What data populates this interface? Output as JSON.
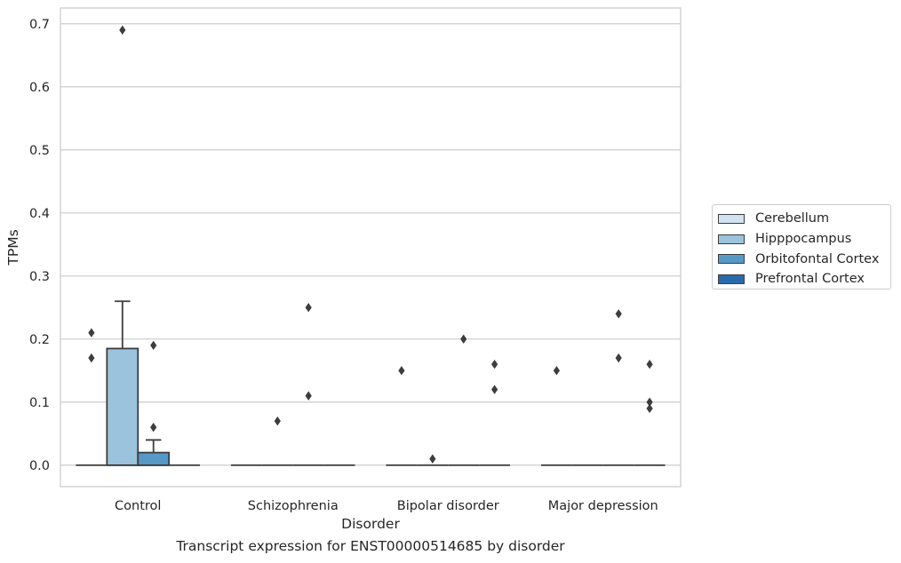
{
  "chart_data": {
    "type": "box",
    "title": "",
    "xlabel": "Disorder",
    "ylabel": "TPMs",
    "caption": "Transcript expression for ENST00000514685 by disorder",
    "ylim": [
      -0.034,
      0.725
    ],
    "yticks": [
      "0.0",
      "0.1",
      "0.2",
      "0.3",
      "0.4",
      "0.5",
      "0.6",
      "0.7"
    ],
    "categories": [
      "Control",
      "Schizophrenia",
      "Bipolar disorder",
      "Major depression"
    ],
    "grid": true,
    "legend_position": "right",
    "series": [
      {
        "name": "Cerebellum",
        "color": "#d1e2f2",
        "boxes": [
          {
            "q1": 0,
            "median": 0,
            "q3": 0,
            "whisker_low": 0,
            "whisker_high": 0,
            "outliers": [
              0.21,
              0.17
            ]
          },
          {
            "q1": 0,
            "median": 0,
            "q3": 0,
            "whisker_low": 0,
            "whisker_high": 0,
            "outliers": []
          },
          {
            "q1": 0,
            "median": 0,
            "q3": 0,
            "whisker_low": 0,
            "whisker_high": 0,
            "outliers": [
              0.15
            ]
          },
          {
            "q1": 0,
            "median": 0,
            "q3": 0,
            "whisker_low": 0,
            "whisker_high": 0,
            "outliers": [
              0.15
            ]
          }
        ]
      },
      {
        "name": "Hipppocampus",
        "color": "#9cc3de",
        "boxes": [
          {
            "q1": 0,
            "median": 0,
            "q3": 0.185,
            "whisker_low": 0,
            "whisker_high": 0.26,
            "outliers": [
              0.69
            ]
          },
          {
            "q1": 0,
            "median": 0,
            "q3": 0,
            "whisker_low": 0,
            "whisker_high": 0,
            "outliers": [
              0.07
            ]
          },
          {
            "q1": 0,
            "median": 0,
            "q3": 0,
            "whisker_low": 0,
            "whisker_high": 0,
            "outliers": [
              0.01
            ]
          },
          {
            "q1": 0,
            "median": 0,
            "q3": 0,
            "whisker_low": 0,
            "whisker_high": 0,
            "outliers": []
          }
        ]
      },
      {
        "name": "Orbitofontal Cortex",
        "color": "#5699c6",
        "boxes": [
          {
            "q1": 0,
            "median": 0,
            "q3": 0.02,
            "whisker_low": 0,
            "whisker_high": 0.04,
            "outliers": [
              0.19,
              0.06
            ]
          },
          {
            "q1": 0,
            "median": 0,
            "q3": 0,
            "whisker_low": 0,
            "whisker_high": 0,
            "outliers": [
              0.25,
              0.11
            ]
          },
          {
            "q1": 0,
            "median": 0,
            "q3": 0,
            "whisker_low": 0,
            "whisker_high": 0,
            "outliers": [
              0.2
            ]
          },
          {
            "q1": 0,
            "median": 0,
            "q3": 0,
            "whisker_low": 0,
            "whisker_high": 0,
            "outliers": [
              0.24,
              0.17
            ]
          }
        ]
      },
      {
        "name": "Prefrontal Cortex",
        "color": "#2a6aab",
        "boxes": [
          {
            "q1": 0,
            "median": 0,
            "q3": 0,
            "whisker_low": 0,
            "whisker_high": 0,
            "outliers": []
          },
          {
            "q1": 0,
            "median": 0,
            "q3": 0,
            "whisker_low": 0,
            "whisker_high": 0,
            "outliers": []
          },
          {
            "q1": 0,
            "median": 0,
            "q3": 0,
            "whisker_low": 0,
            "whisker_high": 0,
            "outliers": [
              0.16,
              0.12
            ]
          },
          {
            "q1": 0,
            "median": 0,
            "q3": 0,
            "whisker_low": 0,
            "whisker_high": 0,
            "outliers": [
              0.16,
              0.09,
              0.1
            ]
          }
        ]
      }
    ]
  }
}
